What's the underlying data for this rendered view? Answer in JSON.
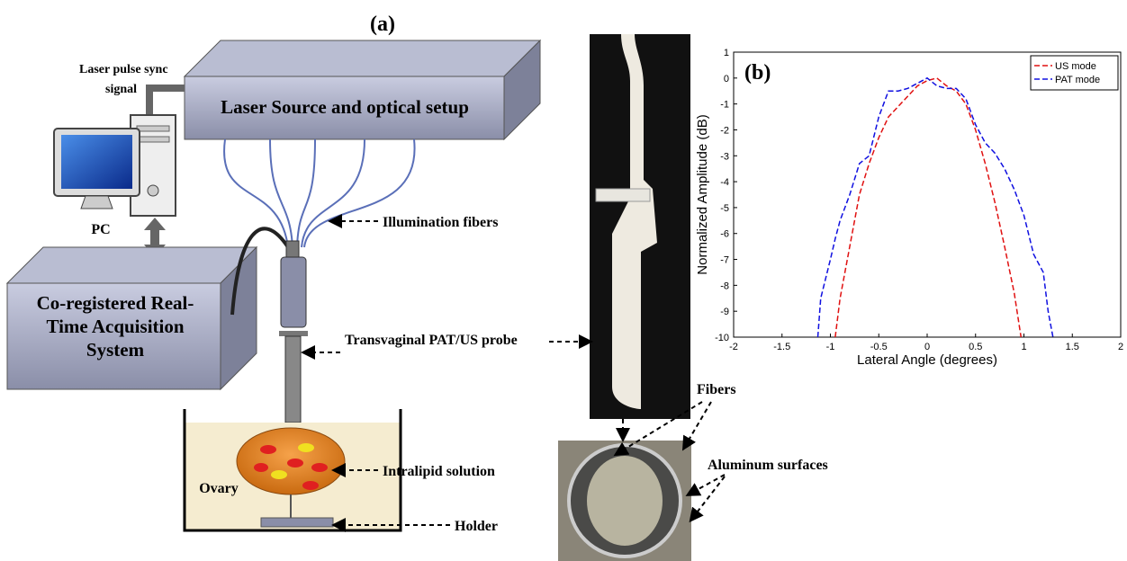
{
  "diagram": {
    "panel_label": "(a)",
    "sync_label": [
      "Laser pulse sync",
      "signal"
    ],
    "laser_box": "Laser Source and optical setup",
    "pc_label": "PC",
    "acquisition_box": [
      "Co-registered Real-",
      "Time Acquisition",
      "System"
    ],
    "illumination_label": "Illumination fibers",
    "probe_label": "Transvaginal PAT/US  probe",
    "ovary_label": "Ovary",
    "solution_label": "Intralipid solution",
    "holder_label": "Holder",
    "fibers_label": "Fibers",
    "aluminum_label": "Aluminum surfaces"
  },
  "chart_data": {
    "type": "line",
    "title": "(b)",
    "x_label": "Lateral Angle (degrees)",
    "y_label": "Normalized Amplitude (dB)",
    "xlim": [
      -2,
      2
    ],
    "ylim": [
      -10,
      1
    ],
    "xticks": [
      -2,
      -1.5,
      -1,
      -0.5,
      0,
      0.5,
      1,
      1.5,
      2
    ],
    "yticks": [
      1,
      0,
      -1,
      -2,
      -3,
      -4,
      -5,
      -6,
      -7,
      -8,
      -9,
      -10
    ],
    "legend": "upper right",
    "x": [
      -1.13,
      -1.1,
      -1,
      -0.95,
      -0.9,
      -0.8,
      -0.7,
      -0.6,
      -0.5,
      -0.4,
      -0.3,
      -0.2,
      -0.1,
      0,
      0.1,
      0.2,
      0.3,
      0.4,
      0.5,
      0.6,
      0.7,
      0.8,
      0.9,
      0.97,
      1,
      1.1,
      1.2,
      1.25,
      1.3
    ],
    "series": [
      {
        "name": "US mode",
        "color": "#e01010",
        "dash": "6,3",
        "values": [
          null,
          null,
          null,
          -10,
          -8.5,
          -6.5,
          -4.5,
          -3.3,
          -2.3,
          -1.5,
          -1.1,
          -0.7,
          -0.3,
          -0.1,
          0,
          -0.3,
          -0.5,
          -1.0,
          -2.0,
          -3.3,
          -4.8,
          -6.5,
          -8.3,
          -10,
          null,
          null,
          null,
          null,
          null
        ]
      },
      {
        "name": "PAT mode",
        "color": "#1010e0",
        "dash": "6,3",
        "values": [
          -10,
          -8.5,
          -7.0,
          -6.2,
          -5.5,
          -4.5,
          -3.3,
          -3.0,
          -1.5,
          -0.5,
          -0.5,
          -0.4,
          -0.2,
          0,
          -0.3,
          -0.4,
          -0.4,
          -0.8,
          -1.8,
          -2.5,
          -2.9,
          -3.5,
          -4.3,
          -5.0,
          -5.3,
          -6.8,
          -7.5,
          -9,
          -10
        ]
      }
    ]
  }
}
